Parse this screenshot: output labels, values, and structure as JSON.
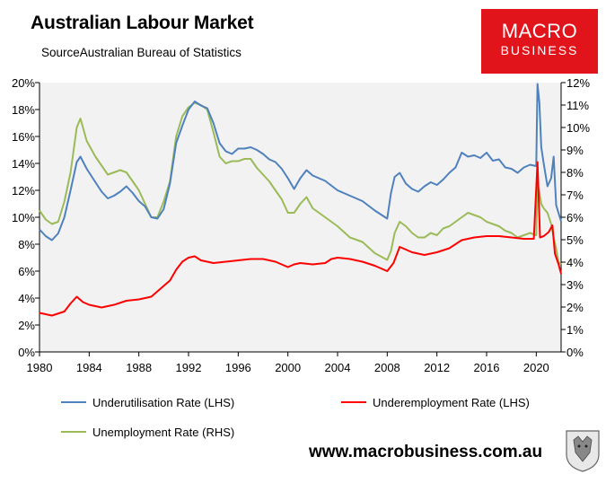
{
  "header": {
    "title": "Australian Labour Market",
    "source": "SourceAustralian Bureau of Statistics"
  },
  "logo": {
    "line1": "MACRO",
    "line2": "BUSINESS",
    "color": "#e2141b"
  },
  "footer": {
    "website": "www.macrobusiness.com.au"
  },
  "colors": {
    "underutilisation": "#4f81bd",
    "underemployment": "#ff0000",
    "unemployment": "#9bbb59",
    "plot_bg": "#f2f2f2"
  },
  "chart_data": {
    "type": "line",
    "title": "Australian Labour Market",
    "xlabel": "",
    "ylabel": "",
    "xlim": [
      1980,
      2022
    ],
    "ylim": [
      0,
      20
    ],
    "y2lim": [
      0,
      12
    ],
    "grid": false,
    "legend_position": "bottom",
    "x_ticks": [
      "1980",
      "1984",
      "1988",
      "1992",
      "1996",
      "2000",
      "2004",
      "2008",
      "2012",
      "2016",
      "2020"
    ],
    "y_ticks_left": [
      "0%",
      "2%",
      "4%",
      "6%",
      "8%",
      "10%",
      "12%",
      "14%",
      "16%",
      "18%",
      "20%"
    ],
    "y_ticks_right": [
      "0%",
      "1%",
      "2%",
      "3%",
      "4%",
      "5%",
      "6%",
      "7%",
      "8%",
      "9%",
      "10%",
      "11%",
      "12%"
    ],
    "series": [
      {
        "name": "Underutilisation Rate (LHS)",
        "axis": "left",
        "x": [
          1980,
          1980.5,
          1981,
          1981.5,
          1982,
          1982.5,
          1983,
          1983.3,
          1983.8,
          1984.5,
          1985,
          1985.5,
          1986,
          1986.5,
          1987,
          1987.5,
          1988,
          1988.5,
          1989,
          1989.5,
          1990,
          1990.5,
          1991,
          1991.5,
          1992,
          1992.5,
          1993,
          1993.5,
          1994,
          1994.5,
          1995,
          1995.5,
          1996,
          1996.5,
          1997,
          1997.5,
          1998,
          1998.5,
          1999,
          1999.5,
          2000,
          2000.5,
          2001,
          2001.5,
          2002,
          2003,
          2004,
          2005,
          2006,
          2007,
          2008,
          2008.3,
          2008.6,
          2009,
          2009.5,
          2010,
          2010.5,
          2011,
          2011.5,
          2012,
          2012.5,
          2013,
          2013.5,
          2014,
          2014.5,
          2015,
          2015.5,
          2016,
          2016.5,
          2017,
          2017.5,
          2018,
          2018.5,
          2019,
          2019.5,
          2020,
          2020.1,
          2020.25,
          2020.4,
          2020.6,
          2020.9,
          2021.2,
          2021.4,
          2021.6,
          2021.8,
          2022
        ],
        "values": [
          9.1,
          8.6,
          8.3,
          8.8,
          10.0,
          12.0,
          14.1,
          14.5,
          13.6,
          12.6,
          11.9,
          11.4,
          11.6,
          11.9,
          12.3,
          11.8,
          11.2,
          10.8,
          10.0,
          9.9,
          10.6,
          12.5,
          15.5,
          16.8,
          18.0,
          18.6,
          18.3,
          18.1,
          17.0,
          15.5,
          14.9,
          14.7,
          15.1,
          15.1,
          15.2,
          15.0,
          14.7,
          14.3,
          14.1,
          13.6,
          12.9,
          12.1,
          12.9,
          13.5,
          13.1,
          12.7,
          12.0,
          11.6,
          11.2,
          10.5,
          9.9,
          11.8,
          13.0,
          13.3,
          12.5,
          12.1,
          11.9,
          12.3,
          12.6,
          12.4,
          12.8,
          13.3,
          13.7,
          14.8,
          14.5,
          14.6,
          14.4,
          14.8,
          14.2,
          14.3,
          13.7,
          13.6,
          13.3,
          13.7,
          13.9,
          13.8,
          19.9,
          18.5,
          15.2,
          14.0,
          12.3,
          12.9,
          14.5,
          10.9,
          10.3,
          9.7
        ]
      },
      {
        "name": "Underemployment Rate (LHS)",
        "axis": "left",
        "x": [
          1980,
          1981,
          1982,
          1982.5,
          1983,
          1983.5,
          1984,
          1985,
          1986,
          1987,
          1988,
          1989,
          1990,
          1990.5,
          1991,
          1991.5,
          1992,
          1992.5,
          1993,
          1994,
          1995,
          1996,
          1997,
          1998,
          1999,
          2000,
          2000.5,
          2001,
          2002,
          2003,
          2003.5,
          2004,
          2005,
          2006,
          2007,
          2008,
          2008.5,
          2009,
          2010,
          2011,
          2012,
          2013,
          2014,
          2015,
          2016,
          2017,
          2018,
          2019,
          2019.8,
          2020.1,
          2020.3,
          2020.6,
          2021,
          2021.3,
          2021.5,
          2021.8,
          2022
        ],
        "values": [
          2.9,
          2.7,
          3.0,
          3.6,
          4.1,
          3.7,
          3.5,
          3.3,
          3.5,
          3.8,
          3.9,
          4.1,
          4.9,
          5.3,
          6.1,
          6.7,
          7.0,
          7.1,
          6.8,
          6.6,
          6.7,
          6.8,
          6.9,
          6.9,
          6.7,
          6.3,
          6.5,
          6.6,
          6.5,
          6.6,
          6.9,
          7.0,
          6.9,
          6.7,
          6.4,
          6.0,
          6.6,
          7.8,
          7.4,
          7.2,
          7.4,
          7.7,
          8.3,
          8.5,
          8.6,
          8.6,
          8.5,
          8.4,
          8.4,
          14.1,
          8.5,
          8.6,
          8.9,
          9.4,
          7.3,
          6.5,
          5.8
        ]
      },
      {
        "name": "Unemployment Rate (RHS)",
        "axis": "right",
        "x": [
          1980,
          1980.5,
          1981,
          1981.5,
          1982,
          1982.5,
          1983,
          1983.3,
          1983.8,
          1984.5,
          1985,
          1985.5,
          1986,
          1986.5,
          1987,
          1987.5,
          1988,
          1988.5,
          1989,
          1989.5,
          1990,
          1990.5,
          1991,
          1991.5,
          1992,
          1992.5,
          1993,
          1993.5,
          1994,
          1994.5,
          1995,
          1995.5,
          1996,
          1996.5,
          1997,
          1997.5,
          1998,
          1998.5,
          1999,
          1999.5,
          2000,
          2000.5,
          2001,
          2001.5,
          2002,
          2003,
          2004,
          2005,
          2006,
          2007,
          2008,
          2008.3,
          2008.6,
          2009,
          2009.5,
          2010,
          2010.5,
          2011,
          2011.5,
          2012,
          2012.5,
          2013,
          2013.5,
          2014,
          2014.5,
          2015,
          2015.5,
          2016,
          2016.5,
          2017,
          2017.5,
          2018,
          2018.5,
          2019,
          2019.5,
          2020,
          2020.1,
          2020.25,
          2020.4,
          2020.6,
          2020.9,
          2021.2,
          2021.4,
          2021.6,
          2021.8,
          2022
        ],
        "values": [
          6.3,
          5.9,
          5.7,
          5.8,
          6.7,
          8.0,
          10.0,
          10.4,
          9.4,
          8.7,
          8.3,
          7.9,
          8.0,
          8.1,
          8.0,
          7.6,
          7.2,
          6.6,
          6.0,
          6.0,
          6.7,
          7.6,
          9.6,
          10.5,
          10.9,
          11.1,
          11.0,
          10.8,
          9.8,
          8.7,
          8.4,
          8.5,
          8.5,
          8.6,
          8.6,
          8.2,
          7.9,
          7.6,
          7.2,
          6.8,
          6.2,
          6.2,
          6.6,
          6.9,
          6.4,
          6.0,
          5.6,
          5.1,
          4.9,
          4.4,
          4.1,
          4.5,
          5.3,
          5.8,
          5.6,
          5.3,
          5.1,
          5.1,
          5.3,
          5.2,
          5.5,
          5.6,
          5.8,
          6.0,
          6.2,
          6.1,
          6.0,
          5.8,
          5.7,
          5.6,
          5.4,
          5.3,
          5.1,
          5.2,
          5.3,
          5.2,
          7.5,
          7.1,
          6.6,
          6.4,
          6.2,
          5.7,
          5.1,
          4.6,
          4.0,
          3.9
        ]
      }
    ]
  }
}
